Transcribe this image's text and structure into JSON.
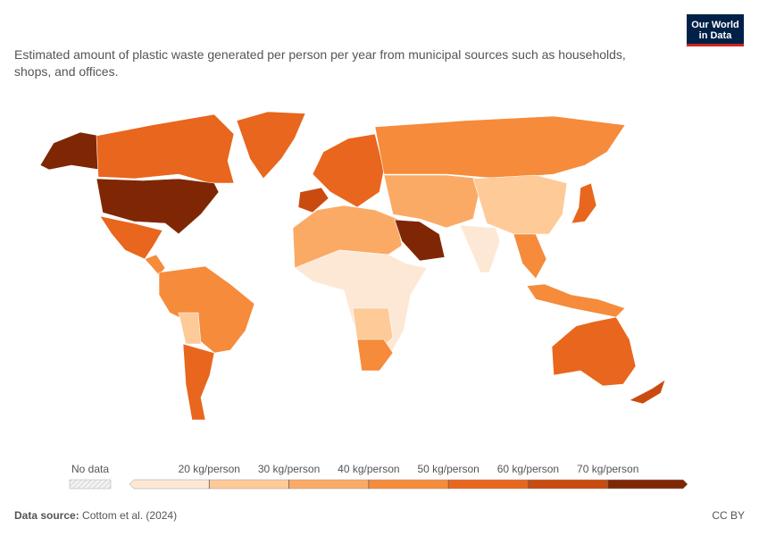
{
  "logo": {
    "line1": "Our World",
    "line2": "in Data"
  },
  "subtitle": {
    "line1": "Estimated amount of plastic waste generated per person per year from municipal sources such as households,",
    "line2": "shops, and offices."
  },
  "legend": {
    "no_data": "No data",
    "ticks": [
      {
        "value": 20,
        "label": "20 kg/person"
      },
      {
        "value": 30,
        "label": "30 kg/person"
      },
      {
        "value": 40,
        "label": "40 kg/person"
      },
      {
        "value": 50,
        "label": "50 kg/person"
      },
      {
        "value": 60,
        "label": "60 kg/person"
      },
      {
        "value": 70,
        "label": "70 kg/person"
      }
    ],
    "colors": [
      "#fde8d6",
      "#fdca98",
      "#fbaa66",
      "#f58b3b",
      "#e8661d",
      "#c94b10",
      "#7f2704"
    ]
  },
  "footer": {
    "source_label": "Data source:",
    "source": "Cottom et al. (2024)",
    "license": "CC BY"
  }
}
